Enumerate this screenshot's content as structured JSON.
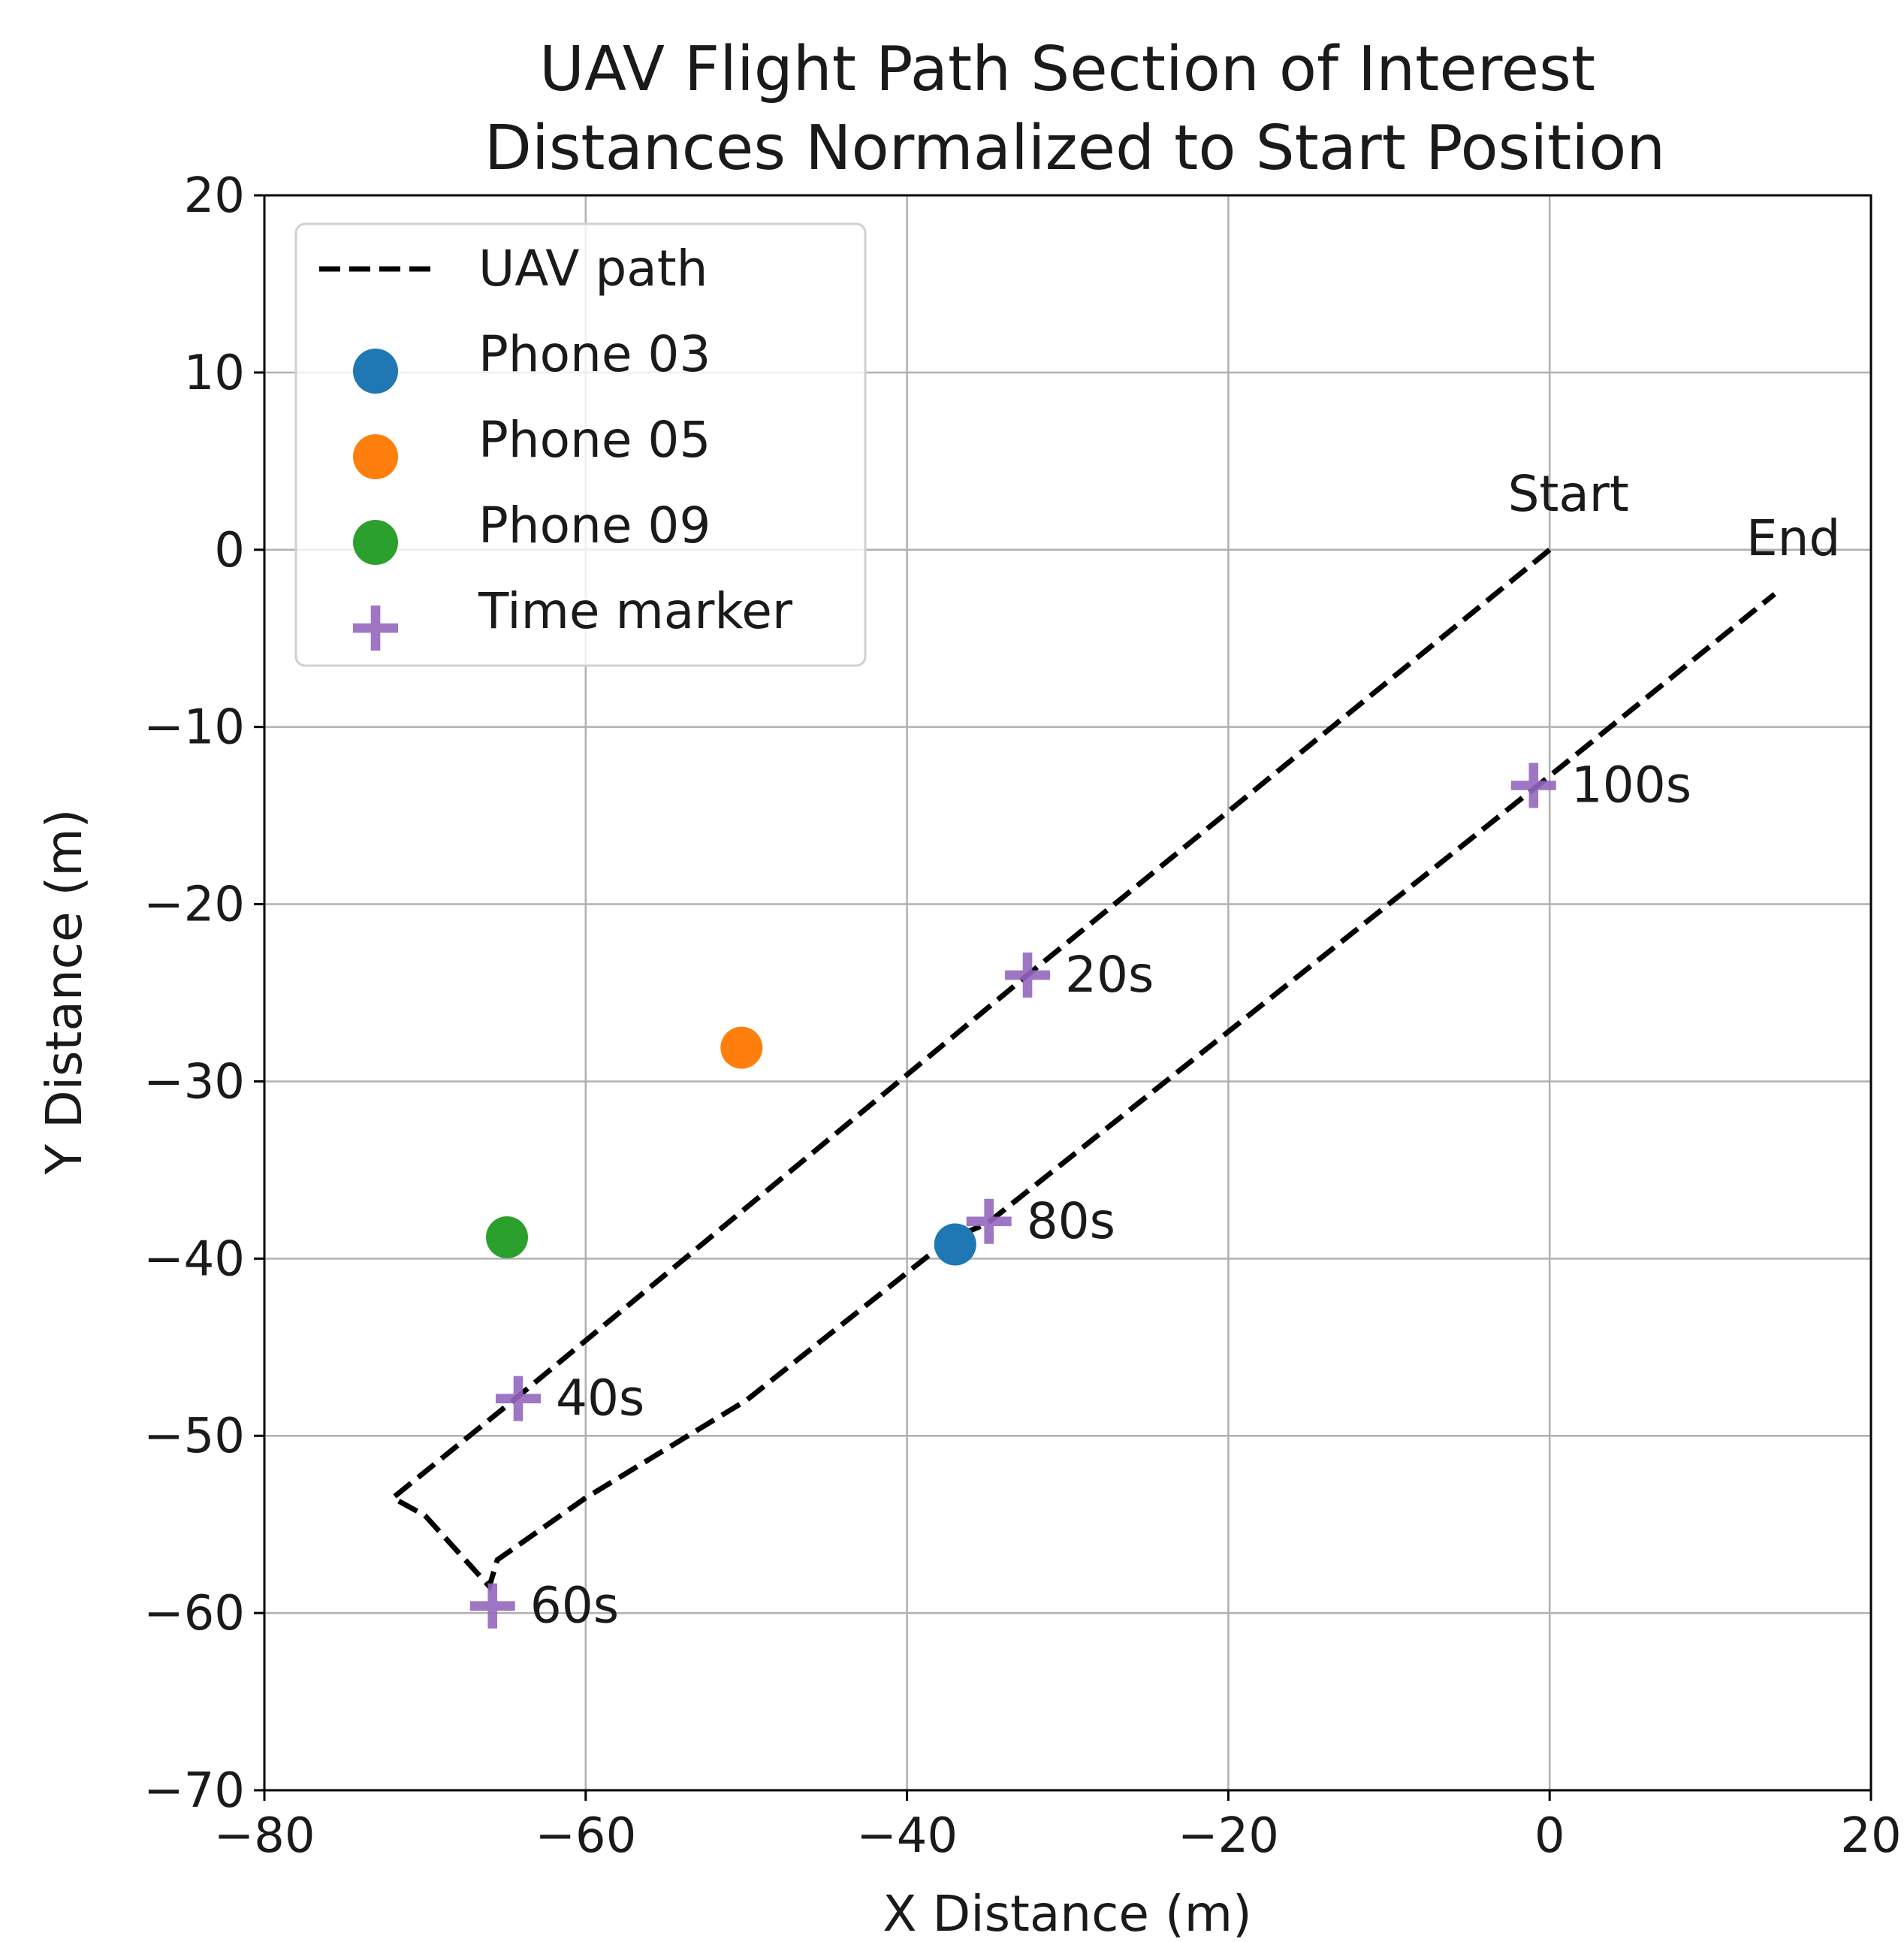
{
  "chart_data": {
    "type": "line",
    "title_lines": [
      "UAV Flight Path Section of Interest",
      "Distances Normalized to Start Position"
    ],
    "xlabel": "X Distance (m)",
    "ylabel": "Y Distance (m)",
    "xlim": [
      -80,
      20
    ],
    "ylim": [
      -70,
      20
    ],
    "x_ticks": [
      -80,
      -60,
      -40,
      -20,
      0,
      20
    ],
    "y_ticks": [
      20,
      10,
      0,
      -10,
      -20,
      -30,
      -40,
      -50,
      -60,
      -70
    ],
    "x_tick_labels": [
      "−80",
      "−60",
      "−40",
      "−20",
      "0",
      "20"
    ],
    "y_tick_labels": [
      "20",
      "10",
      "0",
      "−10",
      "−20",
      "−30",
      "−40",
      "−50",
      "−60",
      "−70"
    ],
    "grid": true,
    "legend_position": "upper-left",
    "series": [
      {
        "name": "UAV path",
        "kind": "line",
        "style": "dashed",
        "color": "#000000",
        "x": [
          0,
          -32.5,
          -64.5,
          -72,
          -70,
          -66,
          -65.5,
          -60,
          -50,
          -37.5,
          -35,
          -1,
          14
        ],
        "y": [
          0,
          -24,
          -48,
          -53.5,
          -54.5,
          -58.5,
          -57,
          -53.5,
          -48,
          -39,
          -38,
          -13.5,
          -2.5
        ]
      },
      {
        "name": "Phone 03",
        "kind": "point",
        "color": "#1f77b4",
        "x": [
          -37
        ],
        "y": [
          -39.2
        ]
      },
      {
        "name": "Phone 05",
        "kind": "point",
        "color": "#ff7f0e",
        "x": [
          -50.3
        ],
        "y": [
          -28.1
        ]
      },
      {
        "name": "Phone 09",
        "kind": "point",
        "color": "#2ca02c",
        "x": [
          -64.9
        ],
        "y": [
          -38.8
        ]
      },
      {
        "name": "Time marker",
        "kind": "marker",
        "color": "#9467bd",
        "x": [
          -32.5,
          -64.2,
          -65.8,
          -34.9,
          -1.0
        ],
        "y": [
          -24.0,
          -47.9,
          -59.6,
          -37.9,
          -13.3
        ],
        "labels": [
          "20s",
          "40s",
          "60s",
          "80s",
          "100s"
        ]
      }
    ],
    "annotations": [
      {
        "text": "Start",
        "x": 0,
        "y": 0
      },
      {
        "text": "End",
        "x": 14,
        "y": -2.5
      }
    ]
  }
}
